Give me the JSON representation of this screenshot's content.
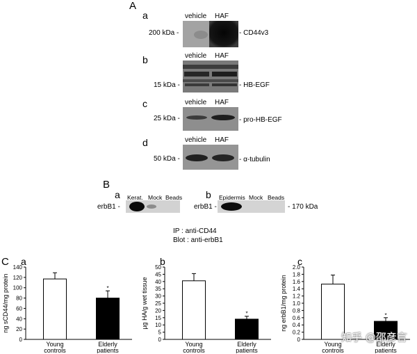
{
  "panel_a": {
    "label": "A",
    "blots": [
      {
        "sub": "a",
        "lanes": [
          "vehicle",
          "HAF"
        ],
        "marker": "200 kDa -",
        "band": "- CD44v3"
      },
      {
        "sub": "b",
        "lanes": [
          "vehicle",
          "HAF"
        ],
        "marker": "15 kDa -",
        "band": "- HB-EGF"
      },
      {
        "sub": "c",
        "lanes": [
          "vehicle",
          "HAF"
        ],
        "marker": "25 kDa -",
        "band": "- pro-HB-EGF"
      },
      {
        "sub": "d",
        "lanes": [
          "vehicle",
          "HAF"
        ],
        "marker": "50 kDa -",
        "band": "- α-tubulin"
      }
    ]
  },
  "panel_b": {
    "label": "B",
    "left": {
      "sub": "a",
      "lanes": [
        "Kerat.",
        "Mock",
        "Beads"
      ],
      "row_label": "erbB1 -"
    },
    "right": {
      "sub": "b",
      "lanes": [
        "Epidermis",
        "Mock",
        "Beads"
      ],
      "row_label": "erbB1 -",
      "marker": "- 170 kDa"
    },
    "ip_line": "IP : anti-CD44",
    "blot_line": "Blot : anti-erbB1"
  },
  "panel_c": {
    "label": "C",
    "watermark": "知乎 @邵彦言"
  },
  "chart_data": [
    {
      "type": "bar",
      "sub": "a",
      "categories": [
        "Young\ncontrols",
        "Elderly\npatients"
      ],
      "category_lines": [
        [
          "Young",
          "controls"
        ],
        [
          "Elderly",
          "patients"
        ]
      ],
      "values": [
        117,
        80
      ],
      "errors": [
        12,
        14
      ],
      "significance": [
        "",
        "*"
      ],
      "ylabel": "ng sCD44/mg protein",
      "ylim": [
        0,
        140
      ],
      "yticks": [
        0,
        20,
        40,
        60,
        80,
        100,
        120,
        140
      ],
      "ytick_labels": [
        "0",
        "20",
        "40",
        "60",
        "80",
        "100",
        "120",
        "140"
      ],
      "bar_fills": [
        "#ffffff",
        "#000000"
      ]
    },
    {
      "type": "bar",
      "sub": "b",
      "categories": [
        "Young\ncontrols",
        "Elderly\npatients"
      ],
      "category_lines": [
        [
          "Young",
          "controls"
        ],
        [
          "Elderly",
          "patients"
        ]
      ],
      "values": [
        40.5,
        14
      ],
      "errors": [
        5,
        2
      ],
      "significance": [
        "",
        "*"
      ],
      "ylabel": "µg HA/g wet tissue",
      "ylim": [
        0,
        50
      ],
      "yticks": [
        0,
        5,
        10,
        15,
        20,
        25,
        30,
        35,
        40,
        45,
        50
      ],
      "ytick_labels": [
        "0",
        "5",
        "10",
        "15",
        "20",
        "25",
        "30",
        "35",
        "40",
        "45",
        "50"
      ],
      "bar_fills": [
        "#ffffff",
        "#000000"
      ]
    },
    {
      "type": "bar",
      "sub": "c",
      "categories": [
        "Young\ncontrols",
        "Elderly\npatients"
      ],
      "category_lines": [
        [
          "Young",
          "controls"
        ],
        [
          "Elderly",
          "patients"
        ]
      ],
      "values": [
        1.53,
        0.5
      ],
      "errors": [
        0.25,
        0.1
      ],
      "significance": [
        "",
        "*"
      ],
      "ylabel": "ng erbB1/mg protein",
      "ylim": [
        0,
        2.0
      ],
      "yticks": [
        0,
        0.2,
        0.4,
        0.6,
        0.8,
        1.0,
        1.2,
        1.4,
        1.6,
        1.8,
        2.0
      ],
      "ytick_labels": [
        "0",
        "0.2",
        "0.4",
        "0.6",
        "0.8",
        "1.0",
        "1.2",
        "1.4",
        "1.6",
        "1.8",
        "2.0"
      ],
      "bar_fills": [
        "#ffffff",
        "#000000"
      ]
    }
  ]
}
